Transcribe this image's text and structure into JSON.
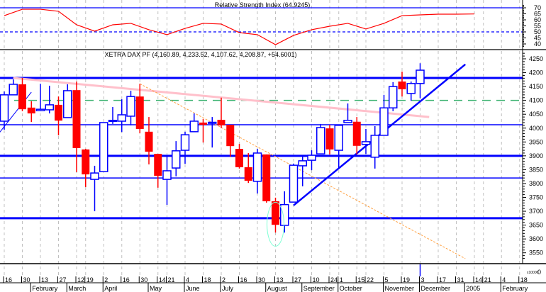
{
  "rsi_panel": {
    "title": "Relative Strength Index (64.9245)",
    "levels": [
      {
        "value": 70,
        "style": "solid"
      },
      {
        "value": 50,
        "style": "dashed"
      }
    ],
    "ticks": [
      "70",
      "65",
      "60",
      "55",
      "50",
      "45",
      "40"
    ],
    "line_color": "#ff0000",
    "level_color": "#0000ff"
  },
  "price_panel": {
    "title": "XETRA DAX PF (4,160.89, 4,233.52, 4,107.62, 4,208.87, +54.6001)",
    "ticks": [
      "4250",
      "4200",
      "4150",
      "4100",
      "4050",
      "4000",
      "3950",
      "3900",
      "3850",
      "3800",
      "3750",
      "3700",
      "3650",
      "3600",
      "3550"
    ],
    "scale_note": "x10000",
    "scale_value": "0"
  },
  "colors": {
    "up": "#0000ff",
    "down": "#ff0000",
    "support": "#0000ff",
    "pink_trend": "#ffc0cb",
    "orange_trend": "#ffa040",
    "green_level": "#3cb371",
    "ellipse": "#7fffd4",
    "grid": "#c0c0c0"
  },
  "chart_data": {
    "type": "candlestick",
    "interval": "weekly",
    "ylim": [
      3530,
      4270
    ],
    "candles": [
      {
        "date": "2004-01-16",
        "o": 4025,
        "h": 4132,
        "l": 3994,
        "c": 4120
      },
      {
        "date": "2004-01-23",
        "o": 4120,
        "h": 4176,
        "l": 4120,
        "c": 4158
      },
      {
        "date": "2004-01-30",
        "o": 4158,
        "h": 4181,
        "l": 4061,
        "c": 4068
      },
      {
        "date": "2004-02-06",
        "o": 4074,
        "h": 4097,
        "l": 4022,
        "c": 4053
      },
      {
        "date": "2004-02-13",
        "o": 4063,
        "h": 4160,
        "l": 4061,
        "c": 4068
      },
      {
        "date": "2004-02-20",
        "o": 4066,
        "h": 4153,
        "l": 4053,
        "c": 4084
      },
      {
        "date": "2004-02-27",
        "o": 4084,
        "h": 4114,
        "l": 3974,
        "c": 4027
      },
      {
        "date": "2004-03-05",
        "o": 4038,
        "h": 4158,
        "l": 4038,
        "c": 4135
      },
      {
        "date": "2004-03-12",
        "o": 4137,
        "h": 4168,
        "l": 3841,
        "c": 3928
      },
      {
        "date": "2004-03-19",
        "o": 3923,
        "h": 3925,
        "l": 3787,
        "c": 3833
      },
      {
        "date": "2004-03-26",
        "o": 3815,
        "h": 3864,
        "l": 3700,
        "c": 3838
      },
      {
        "date": "2004-04-02",
        "o": 3843,
        "h": 4020,
        "l": 3843,
        "c": 4020
      },
      {
        "date": "2004-04-09",
        "o": 4025,
        "h": 4076,
        "l": 4015,
        "c": 4028
      },
      {
        "date": "2004-04-16",
        "o": 4025,
        "h": 4104,
        "l": 3986,
        "c": 4048
      },
      {
        "date": "2004-04-23",
        "o": 4043,
        "h": 4135,
        "l": 4010,
        "c": 4114
      },
      {
        "date": "2004-04-30",
        "o": 4114,
        "h": 4160,
        "l": 3981,
        "c": 3997
      },
      {
        "date": "2004-05-07",
        "o": 3987,
        "h": 4040,
        "l": 3869,
        "c": 3915
      },
      {
        "date": "2004-05-14",
        "o": 3907,
        "h": 3907,
        "l": 3785,
        "c": 3828
      },
      {
        "date": "2004-05-21",
        "o": 3815,
        "h": 3897,
        "l": 3723,
        "c": 3846
      },
      {
        "date": "2004-05-28",
        "o": 3856,
        "h": 3953,
        "l": 3826,
        "c": 3918
      },
      {
        "date": "2004-06-04",
        "o": 3920,
        "h": 3987,
        "l": 3871,
        "c": 3976
      },
      {
        "date": "2004-06-11",
        "o": 3987,
        "h": 4053,
        "l": 3987,
        "c": 4025
      },
      {
        "date": "2004-06-18",
        "o": 4020,
        "h": 4033,
        "l": 3948,
        "c": 4012
      },
      {
        "date": "2004-06-25",
        "o": 4019,
        "h": 4040,
        "l": 3930,
        "c": 4021
      },
      {
        "date": "2004-07-02",
        "o": 4030,
        "h": 4110,
        "l": 4000,
        "c": 4010
      },
      {
        "date": "2004-07-09",
        "o": 4012,
        "h": 4012,
        "l": 3897,
        "c": 3935
      },
      {
        "date": "2004-07-16",
        "o": 3925,
        "h": 3943,
        "l": 3854,
        "c": 3859
      },
      {
        "date": "2004-07-23",
        "o": 3859,
        "h": 3910,
        "l": 3802,
        "c": 3810
      },
      {
        "date": "2004-07-30",
        "o": 3808,
        "h": 3925,
        "l": 3764,
        "c": 3910
      },
      {
        "date": "2004-08-06",
        "o": 3905,
        "h": 3905,
        "l": 3731,
        "c": 3736
      },
      {
        "date": "2004-08-13",
        "o": 3736,
        "h": 3749,
        "l": 3623,
        "c": 3651
      },
      {
        "date": "2004-08-20",
        "o": 3649,
        "h": 3772,
        "l": 3623,
        "c": 3724
      },
      {
        "date": "2004-08-27",
        "o": 3733,
        "h": 3872,
        "l": 3733,
        "c": 3866
      },
      {
        "date": "2004-09-03",
        "o": 3864,
        "h": 3897,
        "l": 3790,
        "c": 3882
      },
      {
        "date": "2004-09-10",
        "o": 3884,
        "h": 3920,
        "l": 3848,
        "c": 3902
      },
      {
        "date": "2004-09-17",
        "o": 3907,
        "h": 4015,
        "l": 3907,
        "c": 4002
      },
      {
        "date": "2004-09-24",
        "o": 3999,
        "h": 4012,
        "l": 3905,
        "c": 3923
      },
      {
        "date": "2004-10-01",
        "o": 3920,
        "h": 4010,
        "l": 3854,
        "c": 4010
      },
      {
        "date": "2004-10-08",
        "o": 4020,
        "h": 4089,
        "l": 4020,
        "c": 4028
      },
      {
        "date": "2004-10-15",
        "o": 4023,
        "h": 4040,
        "l": 3905,
        "c": 3936
      },
      {
        "date": "2004-10-22",
        "o": 3941,
        "h": 3997,
        "l": 3907,
        "c": 3951
      },
      {
        "date": "2004-10-29",
        "o": 3895,
        "h": 4007,
        "l": 3854,
        "c": 3974
      },
      {
        "date": "2004-11-05",
        "o": 3974,
        "h": 4120,
        "l": 3974,
        "c": 4073
      },
      {
        "date": "2004-11-12",
        "o": 4073,
        "h": 4166,
        "l": 4061,
        "c": 4150
      },
      {
        "date": "2004-11-19",
        "o": 4168,
        "h": 4204,
        "l": 4114,
        "c": 4140
      },
      {
        "date": "2004-11-26",
        "o": 4125,
        "h": 4168,
        "l": 4099,
        "c": 4161
      },
      {
        "date": "2004-12-03",
        "o": 4161,
        "h": 4234,
        "l": 4108,
        "c": 4209
      }
    ],
    "rsi": [
      63.5,
      68.8,
      68.8,
      67.1,
      55.9,
      50.6,
      55.9,
      57.1,
      51.8,
      47.7,
      52.9,
      57.1,
      56.5,
      49.4,
      47.7,
      39.4,
      47.1,
      51.8,
      54.7,
      57.1,
      52.4,
      57.1,
      63.5,
      64.1,
      64.7,
      64.7,
      64.9
    ],
    "horizontal_levels": [
      {
        "price": 4181,
        "style": "thick",
        "color": "#0000ff"
      },
      {
        "price": 4100,
        "style": "dashed",
        "color": "#3cb371"
      },
      {
        "price": 4012,
        "style": "thin",
        "color": "#0000ff"
      },
      {
        "price": 3900,
        "style": "thick",
        "color": "#0000ff"
      },
      {
        "price": 3820,
        "style": "thin",
        "color": "#0000ff"
      },
      {
        "price": 3675,
        "style": "thick",
        "color": "#0000ff"
      }
    ],
    "trendlines": [
      {
        "from": [
          "2004-01-23",
          4181
        ],
        "to": [
          "2004-12-10",
          4040
        ],
        "color": "#ffc0cb",
        "style": "thick"
      },
      {
        "from": [
          "2004-04-30",
          4160
        ],
        "to": [
          "2005-01-07",
          3529
        ],
        "color": "#ffa040",
        "style": "dashed"
      },
      {
        "from": [
          "2004-08-27",
          3721
        ],
        "to": [
          "2005-01-07",
          4230
        ],
        "color": "#0000ff",
        "style": "thick"
      },
      {
        "from": [
          "2004-01-09",
          3964
        ],
        "to": [
          "2004-02-06",
          4130
        ],
        "color": "#0000ff",
        "style": "thin"
      }
    ],
    "highlight_ellipse": {
      "date": "2004-08-13",
      "price": 3653,
      "color": "#7fffd4"
    },
    "current_marker": "2004-12-03",
    "x_ticks": [
      {
        "label": "16",
        "date": "2004-01-16"
      },
      {
        "label": "30",
        "date": "2004-01-30"
      },
      {
        "label": "13",
        "date": "2004-02-13"
      },
      {
        "label": "27",
        "date": "2004-02-27"
      },
      {
        "label": "12",
        "date": "2004-03-12"
      },
      {
        "label": "19",
        "date": "2004-03-19"
      },
      {
        "label": "2",
        "date": "2004-04-02"
      },
      {
        "label": "16",
        "date": "2004-04-16"
      },
      {
        "label": "30",
        "date": "2004-04-30"
      },
      {
        "label": "14",
        "date": "2004-05-14"
      },
      {
        "label": "21",
        "date": "2004-05-21"
      },
      {
        "label": "4",
        "date": "2004-06-04"
      },
      {
        "label": "18",
        "date": "2004-06-18"
      },
      {
        "label": "2",
        "date": "2004-07-02"
      },
      {
        "label": "16",
        "date": "2004-07-16"
      },
      {
        "label": "30",
        "date": "2004-07-30"
      },
      {
        "label": "13",
        "date": "2004-08-13"
      },
      {
        "label": "27",
        "date": "2004-08-27"
      },
      {
        "label": "10",
        "date": "2004-09-10"
      },
      {
        "label": "24",
        "date": "2004-09-24"
      },
      {
        "label": "1",
        "date": "2004-10-01"
      },
      {
        "label": "15",
        "date": "2004-10-15"
      },
      {
        "label": "22",
        "date": "2004-10-22"
      },
      {
        "label": "5",
        "date": "2004-11-05"
      },
      {
        "label": "19",
        "date": "2004-11-19"
      },
      {
        "label": "3",
        "date": "2004-12-03"
      },
      {
        "label": "17",
        "date": "2004-12-17"
      },
      {
        "label": "31",
        "date": "2004-12-31"
      },
      {
        "label": "14",
        "date": "2005-01-14"
      },
      {
        "label": "21",
        "date": "2005-01-21"
      },
      {
        "label": "4",
        "date": "2005-02-04"
      },
      {
        "label": "18",
        "date": "2005-02-18"
      }
    ],
    "month_labels": [
      {
        "label": "February",
        "date": "2004-02-06"
      },
      {
        "label": "March",
        "date": "2004-03-05"
      },
      {
        "label": "April",
        "date": "2004-04-02"
      },
      {
        "label": "May",
        "date": "2004-05-07"
      },
      {
        "label": "June",
        "date": "2004-06-04"
      },
      {
        "label": "July",
        "date": "2004-07-02"
      },
      {
        "label": "August",
        "date": "2004-08-06"
      },
      {
        "label": "September",
        "date": "2004-09-03"
      },
      {
        "label": "October",
        "date": "2004-10-01"
      },
      {
        "label": "November",
        "date": "2004-11-05"
      },
      {
        "label": "December",
        "date": "2004-12-03"
      },
      {
        "label": "2005",
        "date": "2005-01-07"
      },
      {
        "label": "February",
        "date": "2005-02-04"
      }
    ]
  }
}
